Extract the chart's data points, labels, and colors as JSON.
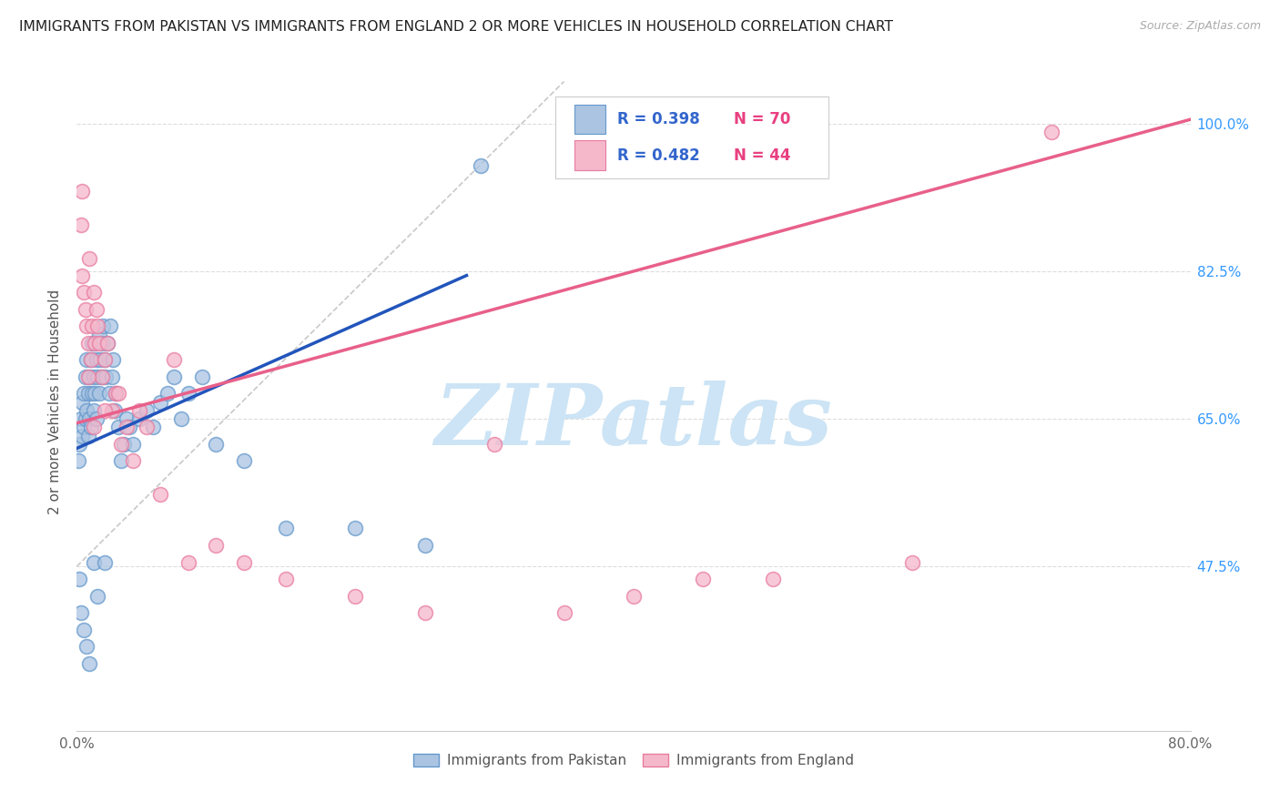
{
  "title": "IMMIGRANTS FROM PAKISTAN VS IMMIGRANTS FROM ENGLAND 2 OR MORE VEHICLES IN HOUSEHOLD CORRELATION CHART",
  "source": "Source: ZipAtlas.com",
  "ylabel": "2 or more Vehicles in Household",
  "xlim": [
    0.0,
    0.8
  ],
  "ylim": [
    0.28,
    1.06
  ],
  "yticks": [
    0.475,
    0.65,
    0.825,
    1.0
  ],
  "yticklabels_right": [
    "47.5%",
    "65.0%",
    "82.5%",
    "100.0%"
  ],
  "xticks": [
    0.0,
    0.1,
    0.2,
    0.3,
    0.4,
    0.5,
    0.6,
    0.7,
    0.8
  ],
  "xticklabels": [
    "0.0%",
    "",
    "",
    "",
    "",
    "",
    "",
    "",
    "80.0%"
  ],
  "pakistan_color": "#aac4e2",
  "england_color": "#f5b8cb",
  "pakistan_edge": "#6699cc",
  "england_edge": "#e87ca0",
  "pakistan_line_color": "#2255bb",
  "england_line_color": "#e8608a",
  "ref_line_color": "#bbbbbb",
  "R_pakistan": 0.398,
  "N_pakistan": 70,
  "R_england": 0.482,
  "N_england": 44,
  "pakistan_x": [
    0.001,
    0.002,
    0.003,
    0.004,
    0.004,
    0.005,
    0.005,
    0.006,
    0.006,
    0.007,
    0.007,
    0.008,
    0.008,
    0.009,
    0.009,
    0.01,
    0.01,
    0.011,
    0.011,
    0.012,
    0.012,
    0.013,
    0.013,
    0.014,
    0.014,
    0.015,
    0.016,
    0.016,
    0.017,
    0.018,
    0.018,
    0.019,
    0.02,
    0.021,
    0.022,
    0.023,
    0.024,
    0.025,
    0.026,
    0.027,
    0.028,
    0.03,
    0.032,
    0.034,
    0.036,
    0.038,
    0.04,
    0.045,
    0.05,
    0.055,
    0.06,
    0.065,
    0.07,
    0.075,
    0.08,
    0.09,
    0.1,
    0.12,
    0.15,
    0.2,
    0.25,
    0.002,
    0.003,
    0.005,
    0.007,
    0.009,
    0.012,
    0.015,
    0.02,
    0.29
  ],
  "pakistan_y": [
    0.6,
    0.62,
    0.65,
    0.63,
    0.67,
    0.64,
    0.68,
    0.65,
    0.7,
    0.66,
    0.72,
    0.63,
    0.68,
    0.65,
    0.7,
    0.64,
    0.72,
    0.68,
    0.74,
    0.66,
    0.7,
    0.68,
    0.74,
    0.65,
    0.72,
    0.7,
    0.75,
    0.68,
    0.72,
    0.74,
    0.7,
    0.76,
    0.72,
    0.7,
    0.74,
    0.68,
    0.76,
    0.7,
    0.72,
    0.66,
    0.68,
    0.64,
    0.6,
    0.62,
    0.65,
    0.64,
    0.62,
    0.65,
    0.66,
    0.64,
    0.67,
    0.68,
    0.7,
    0.65,
    0.68,
    0.7,
    0.62,
    0.6,
    0.52,
    0.52,
    0.5,
    0.46,
    0.42,
    0.4,
    0.38,
    0.36,
    0.48,
    0.44,
    0.48,
    0.95
  ],
  "england_x": [
    0.003,
    0.004,
    0.005,
    0.006,
    0.007,
    0.008,
    0.009,
    0.01,
    0.011,
    0.012,
    0.013,
    0.014,
    0.015,
    0.016,
    0.018,
    0.02,
    0.022,
    0.025,
    0.028,
    0.032,
    0.036,
    0.04,
    0.045,
    0.05,
    0.06,
    0.07,
    0.08,
    0.1,
    0.12,
    0.15,
    0.2,
    0.25,
    0.3,
    0.35,
    0.4,
    0.45,
    0.5,
    0.6,
    0.7,
    0.004,
    0.008,
    0.012,
    0.02,
    0.03
  ],
  "england_y": [
    0.88,
    0.82,
    0.8,
    0.78,
    0.76,
    0.74,
    0.84,
    0.72,
    0.76,
    0.8,
    0.74,
    0.78,
    0.76,
    0.74,
    0.7,
    0.72,
    0.74,
    0.66,
    0.68,
    0.62,
    0.64,
    0.6,
    0.66,
    0.64,
    0.56,
    0.72,
    0.48,
    0.5,
    0.48,
    0.46,
    0.44,
    0.42,
    0.62,
    0.42,
    0.44,
    0.46,
    0.46,
    0.48,
    0.99,
    0.92,
    0.7,
    0.64,
    0.66,
    0.68
  ],
  "watermark_text": "ZIPatlas",
  "watermark_color": "#cce4f5",
  "legend_label_pakistan": "Immigrants from Pakistan",
  "legend_label_england": "Immigrants from England",
  "background_color": "#ffffff",
  "grid_color": "#dddddd"
}
